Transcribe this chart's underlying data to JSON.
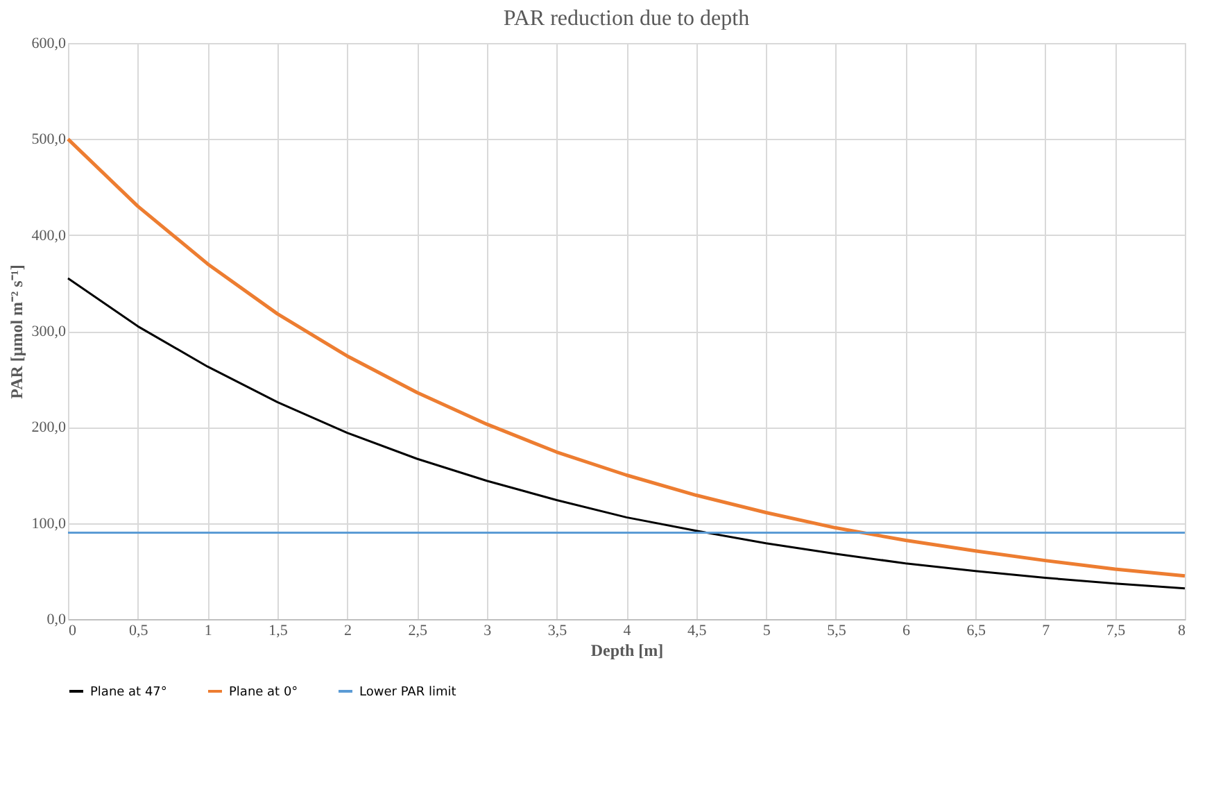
{
  "chart_data": {
    "type": "line",
    "title": "PAR reduction due to depth",
    "xlabel": "Depth [m]",
    "ylabel": "PAR [μmol m⁻² s⁻¹]",
    "x": [
      0,
      0.5,
      1,
      1.5,
      2,
      2.5,
      3,
      3.5,
      4,
      4.5,
      5,
      5.5,
      6,
      6.5,
      7,
      7.5,
      8
    ],
    "series": [
      {
        "name": "Plane at 47°",
        "color": "#000000",
        "values": [
          355,
          305,
          263,
          226,
          194,
          167,
          144,
          124,
          106,
          92,
          79,
          68,
          58,
          50,
          43,
          37,
          32
        ]
      },
      {
        "name": "Plane at 0°",
        "color": "#ed7d31",
        "values": [
          500,
          430,
          370,
          318,
          274,
          236,
          203,
          174,
          150,
          129,
          111,
          95,
          82,
          71,
          61,
          52,
          45
        ]
      },
      {
        "name": "Lower PAR limit",
        "color": "#5b9bd5",
        "values": [
          90,
          90,
          90,
          90,
          90,
          90,
          90,
          90,
          90,
          90,
          90,
          90,
          90,
          90,
          90,
          90,
          90
        ]
      }
    ],
    "xlim": [
      0,
      8
    ],
    "xticks": [
      0,
      {
        "value": 0.5,
        "label": "0,5"
      },
      1,
      {
        "value": 1.5,
        "label": "1,5"
      },
      2,
      {
        "value": 2.5,
        "label": "2,5"
      },
      3,
      {
        "value": 3.5,
        "label": "3,5"
      },
      4,
      {
        "value": 4.5,
        "label": "4,5"
      },
      5,
      {
        "value": 5.5,
        "label": "5,5"
      },
      6,
      {
        "value": 6.5,
        "label": "6,5"
      },
      7,
      {
        "value": 7.5,
        "label": "7,5"
      },
      8
    ],
    "ylim": [
      0,
      600
    ],
    "yticks": [
      {
        "value": 0,
        "label": "0,0"
      },
      {
        "value": 100,
        "label": "100,0"
      },
      {
        "value": 200,
        "label": "200,0"
      },
      {
        "value": 300,
        "label": "300,0"
      },
      {
        "value": 400,
        "label": "400,0"
      },
      {
        "value": 500,
        "label": "500,0"
      },
      {
        "value": 600,
        "label": "600,0"
      }
    ],
    "grid": true,
    "legend": "bottom",
    "marker": "none",
    "line_style": "solid"
  }
}
